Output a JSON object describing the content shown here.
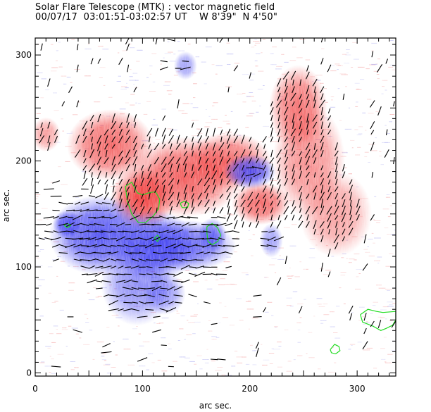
{
  "header": {
    "title": "Solar Flare Telescope (MTK) : vector magnetic field",
    "subtitle": "00/07/17  03:01:51-03:02:57 UT    W 8'39\"  N 4'50\""
  },
  "chart_data": {
    "type": "heatmap",
    "title": "Solar Flare Telescope (MTK) : vector magnetic field",
    "subtitle": "00/07/17  03:01:51-03:02:57 UT    W 8'39\"  N 4'50\"",
    "xlabel": "arc sec.",
    "ylabel": "arc sec.",
    "xlim": [
      0,
      336
    ],
    "ylim": [
      -3,
      316
    ],
    "xticks": [
      "0",
      "100",
      "200",
      "300"
    ],
    "yticks": [
      "0",
      "100",
      "200",
      "300"
    ],
    "xtick_values": [
      0,
      100,
      200,
      300
    ],
    "ytick_values": [
      0,
      100,
      200,
      300
    ],
    "colors": {
      "positive": "#f03c3c",
      "negative": "#3c3cf0",
      "contour": "#22dd22",
      "vector": "#000000"
    },
    "regions": [
      {
        "polarity": "positive",
        "x": 100,
        "y": 165,
        "rx": 22,
        "ry": 22,
        "strength": 1.0
      },
      {
        "polarity": "positive",
        "x": 70,
        "y": 215,
        "rx": 30,
        "ry": 25,
        "strength": 0.8
      },
      {
        "polarity": "positive",
        "x": 140,
        "y": 185,
        "rx": 40,
        "ry": 28,
        "strength": 0.85
      },
      {
        "polarity": "positive",
        "x": 180,
        "y": 200,
        "rx": 30,
        "ry": 20,
        "strength": 0.75
      },
      {
        "polarity": "positive",
        "x": 210,
        "y": 160,
        "rx": 20,
        "ry": 15,
        "strength": 0.8
      },
      {
        "polarity": "positive",
        "x": 245,
        "y": 250,
        "rx": 20,
        "ry": 30,
        "strength": 0.75
      },
      {
        "polarity": "positive",
        "x": 255,
        "y": 200,
        "rx": 25,
        "ry": 40,
        "strength": 0.6
      },
      {
        "polarity": "positive",
        "x": 280,
        "y": 150,
        "rx": 25,
        "ry": 30,
        "strength": 0.5
      },
      {
        "polarity": "positive",
        "x": 10,
        "y": 225,
        "rx": 10,
        "ry": 12,
        "strength": 0.5
      },
      {
        "polarity": "negative",
        "x": 60,
        "y": 130,
        "rx": 35,
        "ry": 28,
        "strength": 0.9
      },
      {
        "polarity": "negative",
        "x": 110,
        "y": 120,
        "rx": 30,
        "ry": 25,
        "strength": 0.9
      },
      {
        "polarity": "negative",
        "x": 140,
        "y": 120,
        "rx": 35,
        "ry": 18,
        "strength": 0.8
      },
      {
        "polarity": "negative",
        "x": 95,
        "y": 85,
        "rx": 25,
        "ry": 30,
        "strength": 0.6
      },
      {
        "polarity": "negative",
        "x": 30,
        "y": 140,
        "rx": 10,
        "ry": 10,
        "strength": 0.85
      },
      {
        "polarity": "negative",
        "x": 200,
        "y": 190,
        "rx": 18,
        "ry": 12,
        "strength": 0.9
      },
      {
        "polarity": "negative",
        "x": 165,
        "y": 130,
        "rx": 10,
        "ry": 12,
        "strength": 0.7
      },
      {
        "polarity": "negative",
        "x": 220,
        "y": 125,
        "rx": 8,
        "ry": 12,
        "strength": 0.5
      },
      {
        "polarity": "negative",
        "x": 140,
        "y": 290,
        "rx": 8,
        "ry": 10,
        "strength": 0.5
      },
      {
        "polarity": "negative",
        "x": 120,
        "y": 75,
        "rx": 15,
        "ry": 15,
        "strength": 0.55
      }
    ],
    "contours": [
      {
        "name": "main-umbra",
        "points": [
          [
            84,
            176
          ],
          [
            90,
            180
          ],
          [
            95,
            170
          ],
          [
            100,
            168
          ],
          [
            106,
            170
          ],
          [
            112,
            171
          ],
          [
            116,
            164
          ],
          [
            115,
            155
          ],
          [
            110,
            148
          ],
          [
            103,
            142
          ],
          [
            96,
            142
          ],
          [
            90,
            150
          ],
          [
            86,
            162
          ],
          [
            84,
            176
          ]
        ]
      },
      {
        "name": "small-1",
        "points": [
          [
            135,
            160
          ],
          [
            139,
            162
          ],
          [
            143,
            160
          ],
          [
            142,
            156
          ],
          [
            137,
            156
          ],
          [
            135,
            160
          ]
        ]
      },
      {
        "name": "small-2",
        "points": [
          [
            111,
            127
          ],
          [
            114,
            130
          ],
          [
            116,
            127
          ],
          [
            114,
            124
          ],
          [
            111,
            127
          ]
        ]
      },
      {
        "name": "spot-east",
        "points": [
          [
            160,
            138
          ],
          [
            165,
            141
          ],
          [
            170,
            137
          ],
          [
            173,
            130
          ],
          [
            170,
            124
          ],
          [
            165,
            121
          ],
          [
            161,
            124
          ],
          [
            160,
            132
          ],
          [
            160,
            138
          ]
        ]
      },
      {
        "name": "spot-left",
        "points": [
          [
            27,
            139
          ],
          [
            30,
            141
          ],
          [
            33,
            139
          ],
          [
            30,
            137
          ],
          [
            27,
            139
          ]
        ]
      },
      {
        "name": "lower-right",
        "points": [
          [
            303,
            55
          ],
          [
            310,
            60
          ],
          [
            318,
            58
          ],
          [
            324,
            57
          ],
          [
            336,
            58
          ],
          [
            336,
            50
          ],
          [
            333,
            45
          ],
          [
            327,
            42
          ],
          [
            322,
            40
          ],
          [
            315,
            44
          ],
          [
            305,
            48
          ],
          [
            303,
            55
          ]
        ]
      },
      {
        "name": "small-bottom",
        "points": [
          [
            275,
            22
          ],
          [
            279,
            27
          ],
          [
            283,
            25
          ],
          [
            284,
            21
          ],
          [
            280,
            18
          ],
          [
            276,
            19
          ],
          [
            275,
            22
          ]
        ]
      }
    ]
  }
}
